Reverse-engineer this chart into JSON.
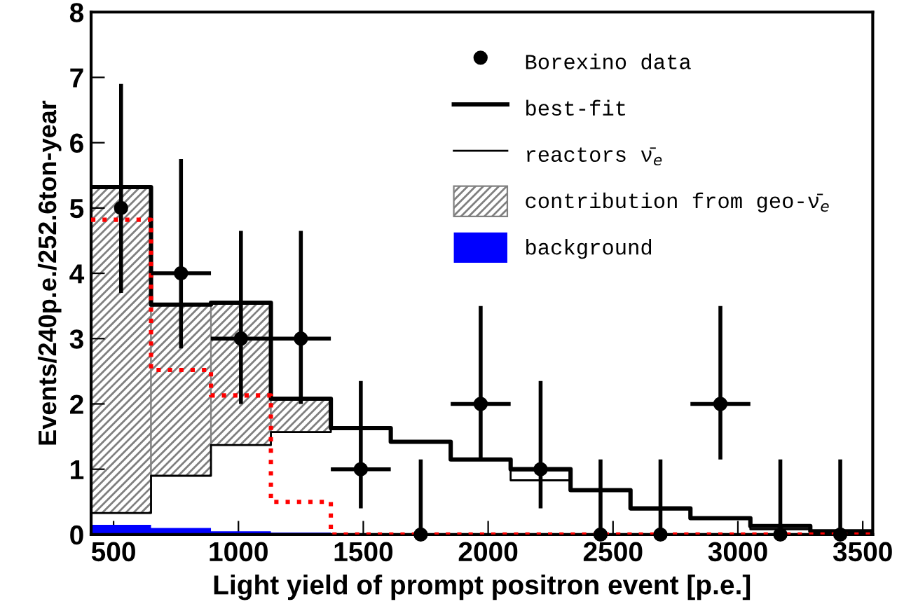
{
  "chart_data": {
    "type": "histogram",
    "xlabel": "Light yield of prompt positron event [p.e.]",
    "ylabel": "Events/240p.e./252.6ton-year",
    "bins": [
      410,
      650,
      890,
      1130,
      1370,
      1610,
      1850,
      2090,
      2330,
      2570,
      2810,
      3050,
      3290,
      3530
    ],
    "series": [
      {
        "name": "Borexino data",
        "type": "scatter",
        "color": "#000000",
        "marker": "circle",
        "x": [
          530,
          770,
          1010,
          1250,
          1490,
          1730,
          1970,
          2210,
          2450,
          2690,
          2930,
          3170,
          3410
        ],
        "values": [
          5,
          4,
          3,
          3,
          1,
          0,
          2,
          1,
          0,
          0,
          2,
          0,
          0
        ],
        "errors": [
          [
            3.7,
            6.9
          ],
          [
            2.85,
            5.75
          ],
          [
            2.0,
            4.65
          ],
          [
            2.0,
            4.65
          ],
          [
            0.4,
            2.35
          ],
          [
            0,
            1.15
          ],
          [
            1.15,
            3.5
          ],
          [
            0.4,
            2.35
          ],
          [
            0,
            1.15
          ],
          [
            0,
            1.15
          ],
          [
            1.15,
            3.5
          ],
          [
            0,
            1.15
          ],
          [
            0,
            1.15
          ]
        ],
        "xerrors": [
          null,
          120,
          120,
          120,
          120,
          null,
          120,
          120,
          null,
          null,
          120,
          null,
          null
        ]
      },
      {
        "name": "best-fit",
        "type": "step",
        "color": "#000000",
        "x": [
          410,
          650,
          890,
          1130,
          1370,
          1610,
          1850,
          2090,
          2330,
          2570,
          2810,
          3050,
          3290,
          3530
        ],
        "values": [
          5.32,
          3.52,
          3.55,
          2.08,
          1.63,
          1.42,
          1.15,
          1.0,
          0.68,
          0.4,
          0.25,
          0.13,
          0.05,
          0.05
        ]
      },
      {
        "name": "reactors ν̄$_{e}$",
        "type": "step",
        "color": "#000000",
        "x": [
          410,
          650,
          890,
          1130,
          1370,
          1610,
          1850,
          2090,
          2330,
          2570,
          2810,
          3050,
          3290,
          3530
        ],
        "values": [
          0.33,
          0.9,
          1.37,
          1.57,
          1.63,
          1.42,
          1.15,
          0.83,
          0.68,
          0.4,
          0.25,
          0.08,
          0.05,
          0.05
        ]
      },
      {
        "name": "contribution from geo-ν̄$_{e}$",
        "type": "bar",
        "color": "#808080",
        "x": [
          530,
          770,
          1010,
          1250
        ],
        "base": [
          0.33,
          0.9,
          1.37,
          1.57
        ],
        "values": [
          4.99,
          2.62,
          2.18,
          0.51
        ]
      },
      {
        "name": "background",
        "color": "#0000ff",
        "values": [
          0.15,
          0.1,
          0.05,
          0.03,
          0.02,
          0.01,
          0,
          0,
          0,
          0,
          0,
          0,
          0
        ]
      },
      {
        "color": "#ff0000",
        "type": "step",
        "line_style": "dotted",
        "x": [
          410,
          650,
          890,
          1130,
          1370,
          1610,
          1850,
          2090,
          2330,
          2570,
          2810,
          3050,
          3290,
          3530
        ],
        "values": [
          4.82,
          2.52,
          2.13,
          0.5,
          0.0,
          0.0,
          0.0,
          0.0,
          0.0,
          0.0,
          0.0,
          0.0,
          0.0,
          0.0
        ]
      }
    ],
    "xlim": [
      410,
      3540
    ],
    "ylim": [
      0,
      8
    ],
    "xticks": [
      500,
      1000,
      1500,
      2000,
      2500,
      3000,
      3500
    ],
    "yticks": [
      0,
      1,
      2,
      3,
      4,
      5,
      6,
      7,
      8
    ],
    "grid": false,
    "legend": "top right"
  }
}
